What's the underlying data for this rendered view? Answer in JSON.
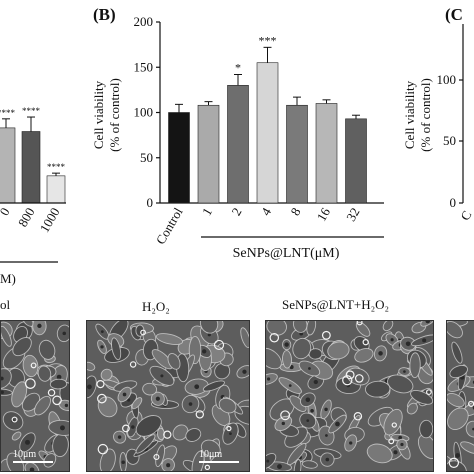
{
  "panels": {
    "panel_a": {
      "ticks_x": [
        "0",
        "800",
        "1000"
      ],
      "unit_fragment": "M)",
      "sig": [
        "****",
        "****",
        "****"
      ]
    },
    "panel_b": {
      "label": "(B)",
      "ylabel_line1": "Cell viability",
      "ylabel_line2": "(% of control)",
      "xgroup_label": "SeNPs@LNT(μM)"
    },
    "panel_c": {
      "label": "(C",
      "ylabel_line1": "Cell viability",
      "ylabel_line2": "(% of control)",
      "yticks": [
        "100",
        "50",
        "0"
      ],
      "xtick_fragment": "C"
    }
  },
  "chart_data": [
    {
      "type": "bar",
      "panel": "A (partially visible)",
      "categories": [
        "0",
        "800",
        "1000"
      ],
      "values": [
        83,
        79,
        30
      ],
      "errors": [
        10,
        16,
        3
      ],
      "significance": [
        "****",
        "****",
        "****"
      ],
      "colors": [
        "#b4b4b4",
        "#555555",
        "#e6e6e6"
      ],
      "ylim": [
        0,
        200
      ]
    },
    {
      "type": "bar",
      "panel": "B",
      "title": "(B)",
      "ylabel": "Cell viability (% of control)",
      "xlabel": "SeNPs@LNT(μM)",
      "categories": [
        "Control",
        "1",
        "2",
        "4",
        "8",
        "16",
        "32"
      ],
      "values": [
        100,
        108,
        130,
        155,
        108,
        110,
        93
      ],
      "errors": [
        9,
        4,
        12,
        17,
        9,
        4,
        4
      ],
      "significance": [
        "",
        "",
        "*",
        "***",
        "",
        "",
        ""
      ],
      "colors": [
        "#141414",
        "#aaaaaa",
        "#6e6e6e",
        "#d6d6d6",
        "#7a7a7a",
        "#b7b7b7",
        "#606060"
      ],
      "ylim": [
        0,
        200
      ],
      "yticks": [
        0,
        50,
        100,
        150,
        200
      ]
    }
  ],
  "micrographs": [
    {
      "caption": "ol",
      "scale": "10μm"
    },
    {
      "caption": "H₂O₂",
      "scale": "10μm"
    },
    {
      "caption": "SeNPs@LNT+H₂O₂",
      "scale": ""
    },
    {
      "caption": "",
      "scale": ""
    }
  ]
}
